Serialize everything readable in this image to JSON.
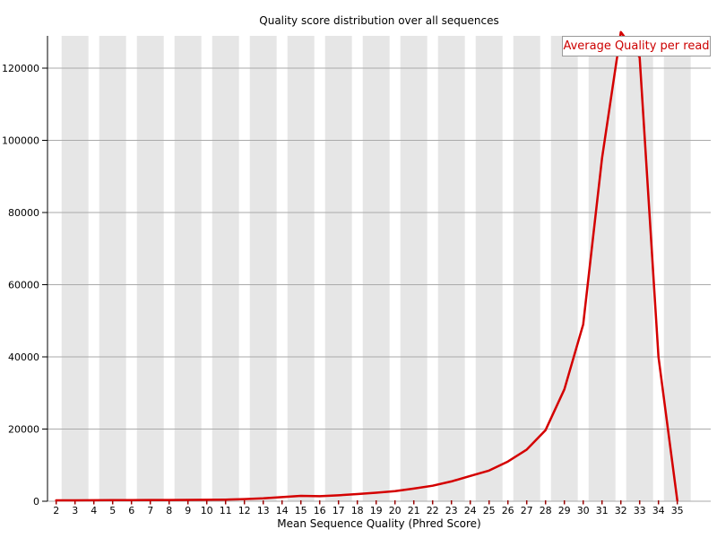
{
  "chart_data": {
    "type": "line",
    "title": "Quality score distribution over all sequences",
    "xlabel": "Mean Sequence Quality (Phred Score)",
    "ylabel": "",
    "x": [
      2,
      3,
      4,
      5,
      6,
      7,
      8,
      9,
      10,
      11,
      12,
      13,
      14,
      15,
      16,
      17,
      18,
      19,
      20,
      21,
      22,
      23,
      24,
      25,
      26,
      27,
      28,
      29,
      30,
      31,
      32,
      33,
      34,
      35
    ],
    "series": [
      {
        "name": "Average Quality per read",
        "color": "#d40000",
        "values": [
          250,
          250,
          280,
          300,
          320,
          340,
          360,
          380,
          400,
          450,
          600,
          800,
          1150,
          1500,
          1400,
          1650,
          2000,
          2350,
          2800,
          3500,
          4300,
          5500,
          7000,
          8500,
          11000,
          14300,
          19700,
          31000,
          49000,
          95000,
          130000,
          123000,
          40000,
          200
        ]
      }
    ],
    "xlim": [
      2,
      35
    ],
    "ylim": [
      0,
      129000
    ],
    "y_ticks": [
      0,
      20000,
      40000,
      60000,
      80000,
      100000,
      120000
    ],
    "grid": "horizontal gray lines at each y tick",
    "background_bands": "alternating light gray vertical bands centered on odd x values",
    "legend_position": "top-right overlapping plot",
    "note": "peak at x=32 exceeds axis maximum and is clipped at plot top"
  },
  "colors": {
    "line": "#d40000",
    "legend_text": "#cc0000",
    "band": "#e6e6e6",
    "grid": "#aaaaaa",
    "axis": "#000000",
    "x_tick_mark": "#990000",
    "background": "#ffffff"
  }
}
